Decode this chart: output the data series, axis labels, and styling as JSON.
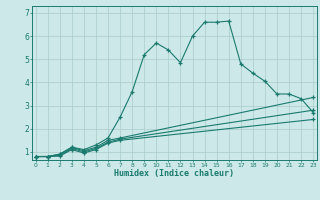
{
  "xlabel": "Humidex (Indice chaleur)",
  "bg_color": "#cce8e8",
  "line_color": "#1a7a6e",
  "grid_color": "#aacccc",
  "xlim": [
    -0.3,
    23.3
  ],
  "ylim": [
    0.65,
    7.3
  ],
  "line1_x": [
    0,
    1,
    2,
    3,
    4,
    5,
    6,
    7,
    8,
    9,
    10,
    11,
    12,
    13,
    14,
    15,
    16,
    17,
    18,
    19,
    20,
    21,
    22,
    23
  ],
  "line1_y": [
    0.8,
    0.8,
    0.9,
    1.2,
    1.1,
    1.3,
    1.6,
    2.5,
    3.6,
    5.2,
    5.7,
    5.4,
    4.85,
    6.0,
    6.6,
    6.6,
    6.65,
    4.8,
    4.4,
    4.05,
    3.5,
    3.5,
    3.3,
    2.7
  ],
  "line2_x": [
    0,
    1,
    2,
    3,
    4,
    5,
    6,
    7,
    23
  ],
  "line2_y": [
    0.8,
    0.8,
    0.9,
    1.2,
    1.05,
    1.2,
    1.5,
    1.6,
    3.35
  ],
  "line3_x": [
    0,
    1,
    2,
    3,
    4,
    5,
    6,
    7,
    23
  ],
  "line3_y": [
    0.8,
    0.8,
    0.85,
    1.15,
    1.0,
    1.15,
    1.42,
    1.55,
    2.8
  ],
  "line4_x": [
    0,
    1,
    2,
    3,
    4,
    5,
    6,
    7,
    23
  ],
  "line4_y": [
    0.8,
    0.8,
    0.82,
    1.1,
    0.95,
    1.1,
    1.38,
    1.5,
    2.4
  ],
  "yticks": [
    1,
    2,
    3,
    4,
    5,
    6,
    7
  ],
  "xticks": [
    0,
    1,
    2,
    3,
    4,
    5,
    6,
    7,
    8,
    9,
    10,
    11,
    12,
    13,
    14,
    15,
    16,
    17,
    18,
    19,
    20,
    21,
    22,
    23
  ]
}
